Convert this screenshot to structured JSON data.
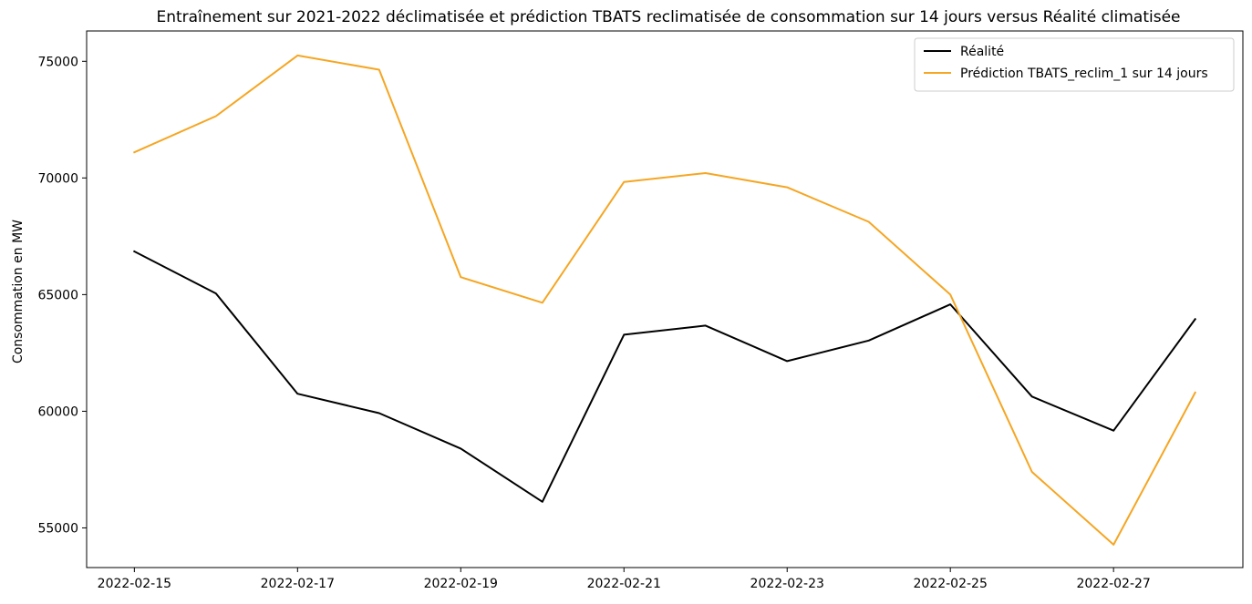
{
  "chart_data": {
    "type": "line",
    "title": "Entraînement sur 2021-2022 déclimatisée et prédiction TBATS reclimatisée de consommation sur 14 jours versus Réalité climatisée",
    "xlabel": "",
    "ylabel": "Consommation en MW",
    "x": [
      "2022-02-15",
      "2022-02-16",
      "2022-02-17",
      "2022-02-18",
      "2022-02-19",
      "2022-02-20",
      "2022-02-21",
      "2022-02-22",
      "2022-02-23",
      "2022-02-24",
      "2022-02-25",
      "2022-02-26",
      "2022-02-27",
      "2022-02-28"
    ],
    "x_ticks": [
      "2022-02-15",
      "2022-02-17",
      "2022-02-19",
      "2022-02-21",
      "2022-02-23",
      "2022-02-25",
      "2022-02-27"
    ],
    "y_ticks": [
      55000,
      60000,
      65000,
      70000,
      75000
    ],
    "y_tick_labels": [
      "55000",
      "60000",
      "65000",
      "70000",
      "75000"
    ],
    "ylim": [
      53300,
      76300
    ],
    "grid": false,
    "legend_position": "top-right",
    "series": [
      {
        "name": "Réalité",
        "color": "#000000",
        "values": [
          66850,
          65050,
          60750,
          59920,
          58400,
          56120,
          63280,
          63670,
          62150,
          63030,
          64580,
          60630,
          59170,
          63950
        ]
      },
      {
        "name": "Prédiction TBATS_reclim_1 sur 14 jours",
        "color": "#f5a623",
        "values": [
          71100,
          72650,
          75250,
          74640,
          65750,
          64650,
          69830,
          70210,
          69600,
          68120,
          65000,
          57400,
          54280,
          60800
        ]
      }
    ]
  }
}
